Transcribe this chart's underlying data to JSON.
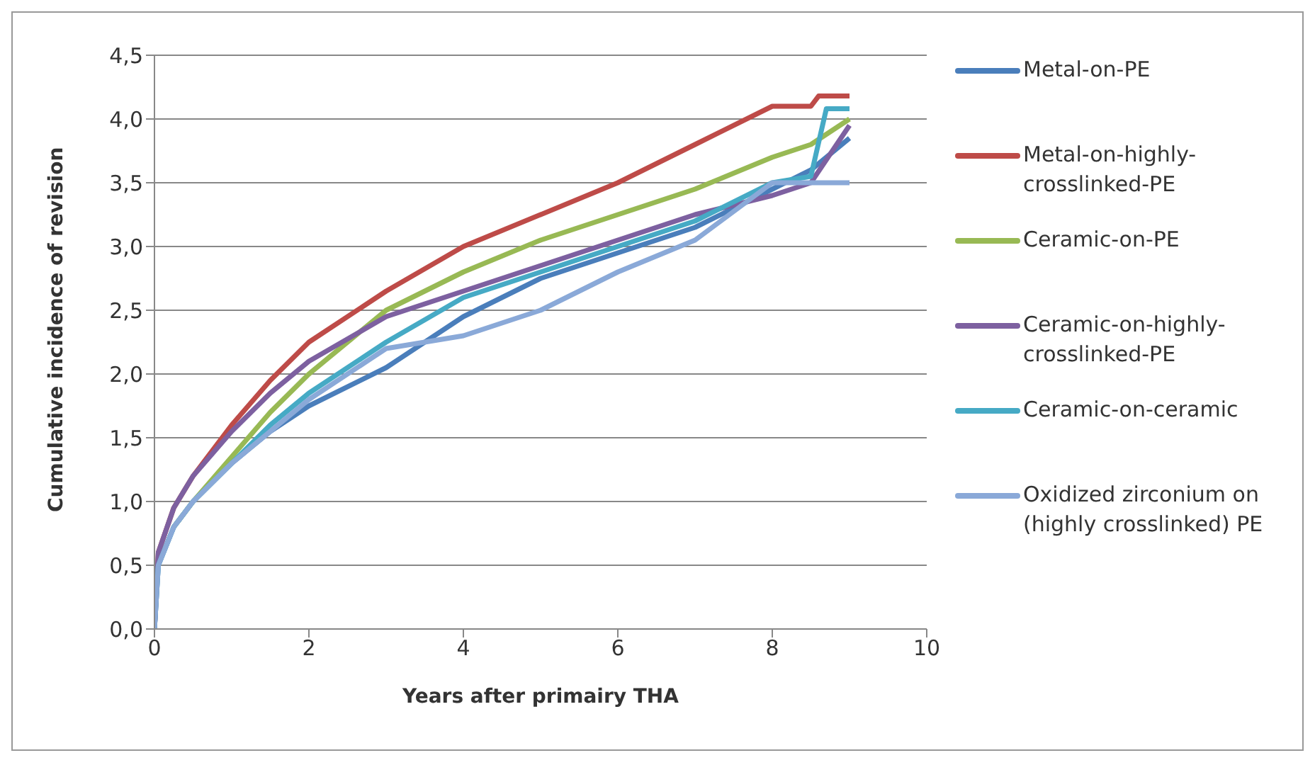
{
  "chart_data": {
    "type": "line",
    "xlabel": "Years after primairy THA",
    "ylabel": "Cumulative incidence of revision",
    "xlim": [
      0,
      10
    ],
    "xticks": [
      0,
      2,
      4,
      6,
      8,
      10
    ],
    "ylim": [
      0,
      4.5
    ],
    "yticks": [
      {
        "value": 0,
        "label": "0,0"
      },
      {
        "value": 0.5,
        "label": "0,5"
      },
      {
        "value": 1,
        "label": "1,0"
      },
      {
        "value": 1.5,
        "label": "1,5"
      },
      {
        "value": 2,
        "label": "2,0"
      },
      {
        "value": 2.5,
        "label": "2,5"
      },
      {
        "value": 3,
        "label": "3,0"
      },
      {
        "value": 3.5,
        "label": "3,5"
      },
      {
        "value": 4,
        "label": "4,0"
      },
      {
        "value": 4.5,
        "label": "4,5"
      }
    ],
    "grid": "y",
    "legend": "right",
    "marker": "none",
    "line_style": "solid",
    "series": [
      {
        "name": "Metal-on-PE",
        "color": "#4a7ebb",
        "x": [
          0,
          0.05,
          0.25,
          0.5,
          1,
          1.5,
          2,
          3,
          4,
          5,
          6,
          7,
          8,
          8.5,
          9
        ],
        "values": [
          0,
          0.5,
          0.8,
          1.0,
          1.3,
          1.55,
          1.75,
          2.05,
          2.45,
          2.75,
          2.95,
          3.15,
          3.45,
          3.6,
          3.85
        ]
      },
      {
        "name": "Metal-on-highly-crosslinked-PE",
        "color": "#be4b48",
        "x": [
          0,
          0.05,
          0.25,
          0.5,
          1,
          1.5,
          2,
          3,
          4,
          5,
          6,
          7,
          8,
          8.5,
          8.6,
          9
        ],
        "values": [
          0,
          0.6,
          0.95,
          1.2,
          1.6,
          1.95,
          2.25,
          2.65,
          3.0,
          3.25,
          3.5,
          3.8,
          4.1,
          4.1,
          4.18,
          4.18
        ]
      },
      {
        "name": "Ceramic-on-PE",
        "color": "#98b954",
        "x": [
          0.25,
          0.5,
          1,
          1.5,
          2,
          3,
          4,
          5,
          6,
          7,
          8,
          8.5,
          9
        ],
        "values": [
          0.8,
          1.0,
          1.35,
          1.7,
          2.0,
          2.5,
          2.8,
          3.05,
          3.25,
          3.45,
          3.7,
          3.8,
          4.0
        ]
      },
      {
        "name": "Ceramic-on-highly-crosslinked-PE",
        "color": "#7d60a0",
        "x": [
          0,
          0.05,
          0.25,
          0.5,
          1,
          1.5,
          2,
          3,
          4,
          5,
          6,
          7,
          8,
          8.5,
          9
        ],
        "values": [
          0,
          0.6,
          0.95,
          1.2,
          1.55,
          1.85,
          2.1,
          2.45,
          2.65,
          2.85,
          3.05,
          3.25,
          3.4,
          3.5,
          3.95
        ]
      },
      {
        "name": "Ceramic-on-ceramic",
        "color": "#46aac5",
        "x": [
          0,
          0.05,
          0.25,
          0.5,
          1,
          1.5,
          2,
          3,
          4,
          5,
          6,
          7,
          8,
          8.5,
          8.7,
          9
        ],
        "values": [
          0,
          0.5,
          0.8,
          1.0,
          1.3,
          1.6,
          1.85,
          2.25,
          2.6,
          2.8,
          3.0,
          3.2,
          3.5,
          3.55,
          4.08,
          4.08
        ]
      },
      {
        "name": "Oxidized zirconium on (highly crosslinked) PE",
        "color": "#8aa9d8",
        "x": [
          0,
          0.05,
          0.25,
          0.5,
          1,
          1.5,
          2,
          3,
          4,
          5,
          6,
          7,
          8,
          8.5,
          9
        ],
        "values": [
          0,
          0.5,
          0.8,
          1.0,
          1.3,
          1.55,
          1.8,
          2.2,
          2.3,
          2.5,
          2.8,
          3.05,
          3.5,
          3.5,
          3.5
        ]
      }
    ]
  }
}
